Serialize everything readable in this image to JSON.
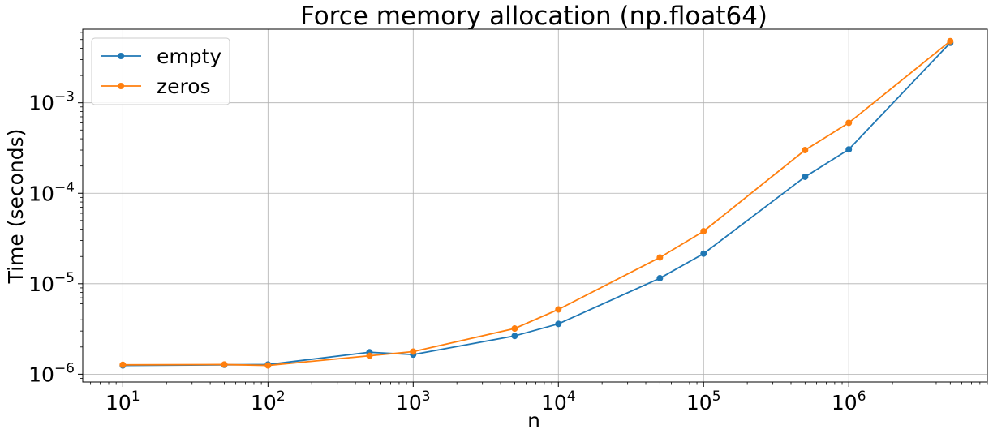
{
  "chart_data": {
    "type": "line",
    "title": "Force memory allocation (np.float64)",
    "xlabel": "n",
    "ylabel": "Time (seconds)",
    "xscale": "log",
    "yscale": "log",
    "xlim": [
      5.3,
      9000000
    ],
    "ylim": [
      8.2e-07,
      0.0065
    ],
    "grid": true,
    "legend_position": "top-left",
    "x_ticks": [
      {
        "base": "10",
        "exp": "1"
      },
      {
        "base": "10",
        "exp": "2"
      },
      {
        "base": "10",
        "exp": "3"
      },
      {
        "base": "10",
        "exp": "4"
      },
      {
        "base": "10",
        "exp": "5"
      },
      {
        "base": "10",
        "exp": "6"
      }
    ],
    "y_ticks": [
      {
        "base": "10",
        "exp": "−6"
      },
      {
        "base": "10",
        "exp": "−5"
      },
      {
        "base": "10",
        "exp": "−4"
      },
      {
        "base": "10",
        "exp": "−3"
      }
    ],
    "x": [
      10,
      50,
      100,
      500,
      1000,
      5000,
      10000,
      50000,
      100000,
      500000,
      1000000,
      5000000
    ],
    "series": [
      {
        "name": "empty",
        "color": "#1f77b4",
        "values": [
          1.25e-06,
          1.27e-06,
          1.28e-06,
          1.75e-06,
          1.65e-06,
          2.65e-06,
          3.6e-06,
          1.15e-05,
          2.15e-05,
          0.000152,
          0.000305,
          0.0046
        ]
      },
      {
        "name": "zeros",
        "color": "#ff7f0e",
        "values": [
          1.27e-06,
          1.28e-06,
          1.25e-06,
          1.6e-06,
          1.78e-06,
          3.2e-06,
          5.2e-06,
          1.95e-05,
          3.8e-05,
          0.0003,
          0.0006,
          0.0048
        ]
      }
    ]
  }
}
